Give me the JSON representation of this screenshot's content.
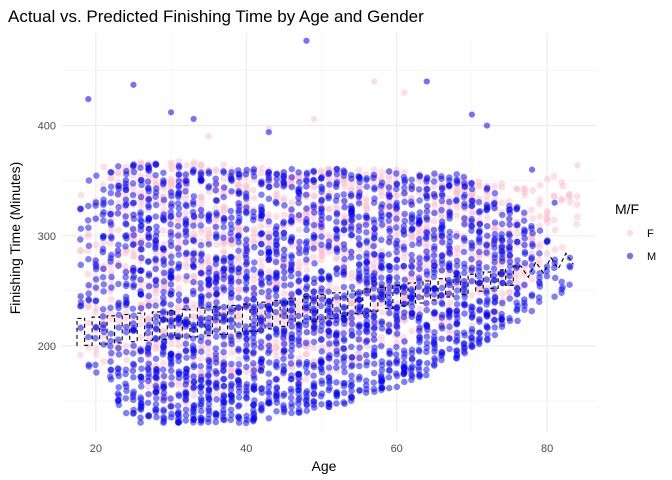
{
  "chart_data": {
    "type": "scatter",
    "title": "Actual vs. Predicted Finishing Time by Age and Gender",
    "xlabel": "Age",
    "ylabel": "Finishing Time (Minutes)",
    "xlim": [
      15.5,
      86.5
    ],
    "ylim": [
      121,
      484
    ],
    "x_ticks": [
      20,
      40,
      60,
      80
    ],
    "y_ticks": [
      200,
      300,
      400
    ],
    "grid": true,
    "legend": {
      "title": "M/F",
      "position": "right",
      "entries": [
        {
          "label": "F",
          "color": "#FFC0CB"
        },
        {
          "label": "M",
          "color": "#0000FF"
        }
      ]
    },
    "series": [
      {
        "name": "F",
        "kind": "points",
        "color": "#FFC0CB",
        "age_range": [
          18,
          84
        ],
        "band_low": [
          [
            18,
            190
          ],
          [
            30,
            145
          ],
          [
            45,
            160
          ],
          [
            60,
            195
          ],
          [
            70,
            215
          ],
          [
            78,
            250
          ],
          [
            84,
            300
          ]
        ],
        "band_high": [
          [
            18,
            365
          ],
          [
            30,
            368
          ],
          [
            45,
            362
          ],
          [
            60,
            360
          ],
          [
            70,
            350
          ],
          [
            78,
            345
          ],
          [
            84,
            365
          ]
        ],
        "outliers": [
          [
            57,
            440
          ],
          [
            61,
            430
          ],
          [
            43,
            397
          ],
          [
            35,
            390
          ],
          [
            49,
            406
          ],
          [
            84,
            364
          ]
        ]
      },
      {
        "name": "M",
        "kind": "points",
        "color": "#0000FF",
        "age_range": [
          18,
          83
        ],
        "band_low": [
          [
            18,
            185
          ],
          [
            25,
            130
          ],
          [
            40,
            130
          ],
          [
            55,
            150
          ],
          [
            65,
            175
          ],
          [
            72,
            205
          ],
          [
            80,
            240
          ],
          [
            83,
            250
          ]
        ],
        "band_high": [
          [
            18,
            370
          ],
          [
            30,
            365
          ],
          [
            45,
            362
          ],
          [
            60,
            360
          ],
          [
            70,
            355
          ],
          [
            76,
            330
          ],
          [
            80,
            300
          ],
          [
            83,
            285
          ]
        ],
        "outliers": [
          [
            48,
            477
          ],
          [
            19,
            424
          ],
          [
            25,
            437
          ],
          [
            64,
            440
          ],
          [
            30,
            412
          ],
          [
            33,
            406
          ],
          [
            43,
            394
          ],
          [
            70,
            410
          ],
          [
            72,
            400
          ],
          [
            81,
            330
          ],
          [
            78,
            360
          ]
        ]
      },
      {
        "name": "Predicted",
        "kind": "dashed-line",
        "color": "#000000",
        "age_range": [
          18,
          84
        ],
        "f_points": [
          [
            18,
            225
          ],
          [
            40,
            238
          ],
          [
            60,
            255
          ],
          [
            75,
            270
          ],
          [
            84,
            292
          ]
        ],
        "m_points": [
          [
            18,
            200
          ],
          [
            40,
            212
          ],
          [
            60,
            235
          ],
          [
            75,
            255
          ],
          [
            84,
            268
          ]
        ]
      }
    ]
  }
}
